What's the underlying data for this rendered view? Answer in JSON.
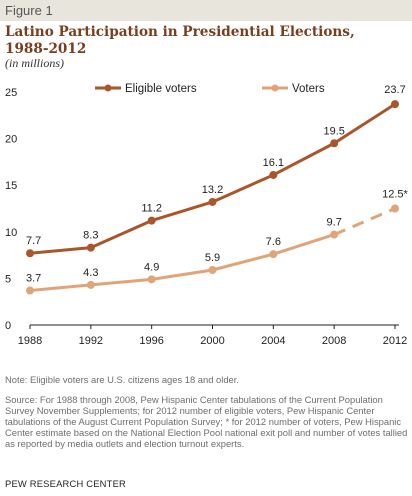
{
  "figure_label": "Figure 1",
  "title_line1": "Latino Participation in Presidential Elections,",
  "title_line2": "1988-2012",
  "subtitle": "(in millions)",
  "note": "Note: Eligible voters are U.S. citizens ages 18 and older.",
  "source": "Source: For 1988 through 2008, Pew Hispanic Center tabulations of the Current Population Survey November Supplements; for 2012 number of eligible voters, Pew Hispanic Center tabulations of the August Current Population Survey; * for 2012 number of voters, Pew Hispanic Center estimate based on the National Election Pool national exit poll and number of votes tallied as reported by media outlets and election turnout experts.",
  "org": "PEW RESEARCH CENTER",
  "colors": {
    "eligible": "#a9562a",
    "voters": "#e1a478"
  },
  "chart_data": {
    "type": "line",
    "x": [
      1988,
      1992,
      1996,
      2000,
      2004,
      2008,
      2012
    ],
    "x_tick_labels": [
      "1988",
      "1992",
      "1996",
      "2000",
      "2004",
      "2008",
      "2012"
    ],
    "ylim": [
      0,
      25
    ],
    "y_ticks": [
      0,
      5,
      10,
      15,
      20,
      25
    ],
    "grid": false,
    "legend_position": "top",
    "series": [
      {
        "name": "Eligible voters",
        "values": [
          7.7,
          8.3,
          11.2,
          13.2,
          16.1,
          19.5,
          23.7
        ],
        "labels": [
          "7.7",
          "8.3",
          "11.2",
          "13.2",
          "16.1",
          "19.5",
          "23.7"
        ],
        "dashed_last_segment": false
      },
      {
        "name": "Voters",
        "values": [
          3.7,
          4.3,
          4.9,
          5.9,
          7.6,
          9.7,
          12.5
        ],
        "labels": [
          "3.7",
          "4.3",
          "4.9",
          "5.9",
          "7.6",
          "9.7",
          "12.5*"
        ],
        "dashed_last_segment": true
      }
    ]
  }
}
